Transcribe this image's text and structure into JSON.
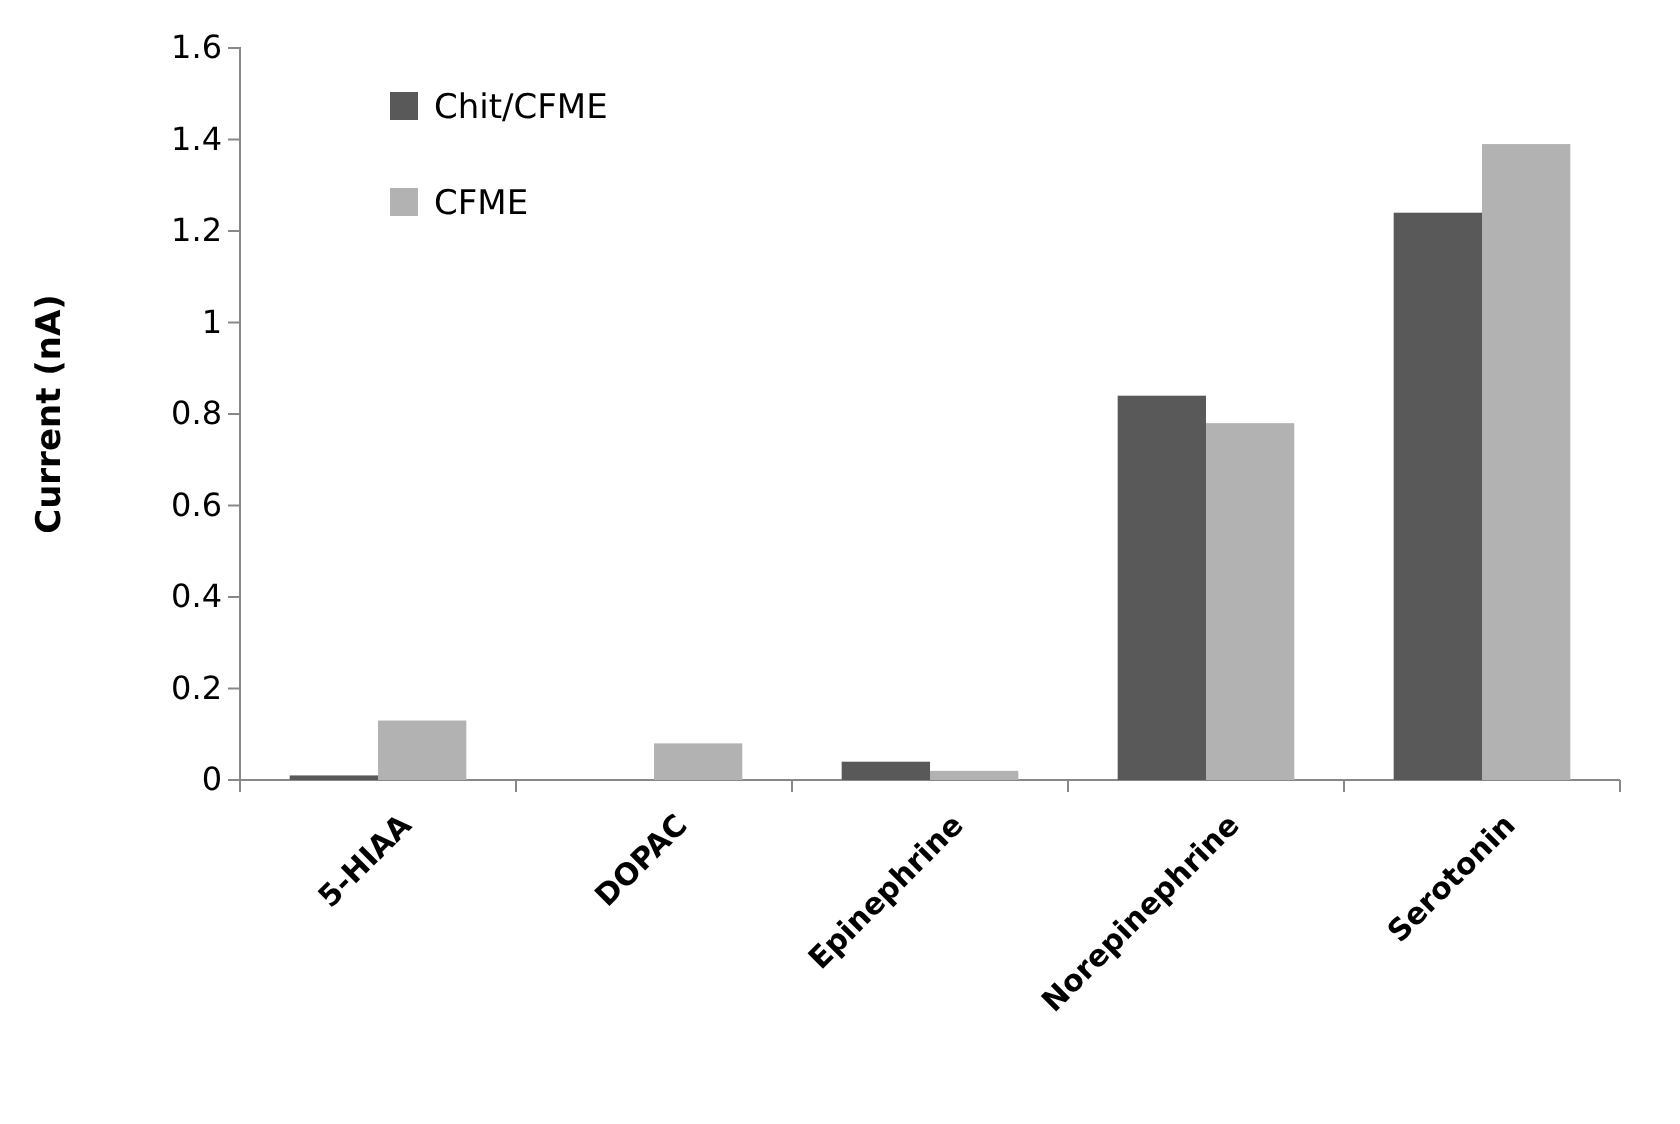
{
  "chart_data": {
    "type": "bar",
    "ylabel": "Current (nA)",
    "categories": [
      "5-HIAA",
      "DOPAC",
      "Epinephrine",
      "Norepinephrine",
      "Serotonin"
    ],
    "series": [
      {
        "name": "Chit/CFME",
        "color": "#595959",
        "values": [
          0.01,
          0,
          0.04,
          0.84,
          1.24
        ]
      },
      {
        "name": "CFME",
        "color": "#b2b2b2",
        "values": [
          0.13,
          0.08,
          0.02,
          0.78,
          1.39
        ]
      }
    ],
    "ylim": [
      0,
      1.6
    ],
    "yticks": [
      0,
      {
        "value": 0.2,
        "label": "0.2"
      },
      {
        "value": 0.4,
        "label": "0.4"
      },
      {
        "value": 0.6,
        "label": "0.6"
      },
      {
        "value": 0.8,
        "label": "0.8"
      },
      1,
      {
        "value": 1.2,
        "label": "1.2"
      },
      {
        "value": 1.4,
        "label": "1.4"
      },
      {
        "value": 1.6,
        "label": "1.6"
      }
    ],
    "grid": false,
    "legend": "top left"
  }
}
